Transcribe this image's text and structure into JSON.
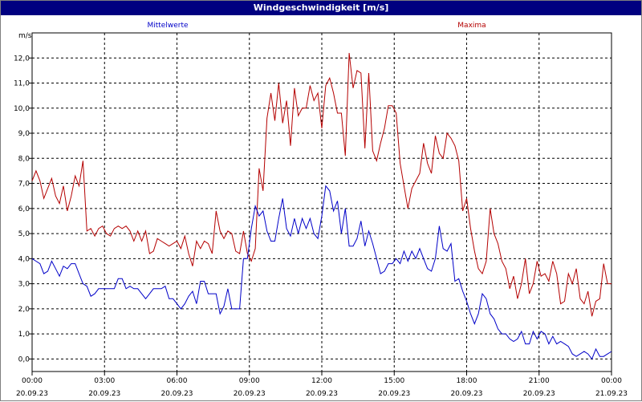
{
  "chart_data": {
    "type": "line",
    "title": "Windgeschwindigkeit [m/s]",
    "ylabel": "m/s",
    "ylim": [
      -0.5,
      13.0
    ],
    "y_ticks": [
      "0,0",
      "1,0",
      "2,0",
      "3,0",
      "4,0",
      "5,0",
      "6,0",
      "7,0",
      "8,0",
      "9,0",
      "10,0",
      "11,0",
      "12,0"
    ],
    "x_ticks": [
      {
        "time": "00:00",
        "date": "20.09.23"
      },
      {
        "time": "03:00",
        "date": "20.09.23"
      },
      {
        "time": "06:00",
        "date": "20.09.23"
      },
      {
        "time": "09:00",
        "date": "20.09.23"
      },
      {
        "time": "12:00",
        "date": "20.09.23"
      },
      {
        "time": "15:00",
        "date": "20.09.23"
      },
      {
        "time": "18:00",
        "date": "20.09.23"
      },
      {
        "time": "21:00",
        "date": "20.09.23"
      },
      {
        "time": "00:00",
        "date": "21.09.23"
      }
    ],
    "grid": true,
    "series": [
      {
        "name": "Mittelwerte",
        "color": "#0000c8",
        "points": [
          [
            0.0,
            4.0
          ],
          [
            0.25,
            3.9
          ],
          [
            0.5,
            3.8
          ],
          [
            0.75,
            3.4
          ],
          [
            1.0,
            3.5
          ],
          [
            1.25,
            3.9
          ],
          [
            1.5,
            3.6
          ],
          [
            1.75,
            3.3
          ],
          [
            2.0,
            3.7
          ],
          [
            2.25,
            3.6
          ],
          [
            2.5,
            3.8
          ],
          [
            2.75,
            3.8
          ],
          [
            3.0,
            3.4
          ],
          [
            3.25,
            3.0
          ],
          [
            3.5,
            2.9
          ],
          [
            3.75,
            2.5
          ],
          [
            4.0,
            2.6
          ],
          [
            4.25,
            2.8
          ],
          [
            4.5,
            2.8
          ],
          [
            4.75,
            2.8
          ],
          [
            5.0,
            2.8
          ],
          [
            5.25,
            2.8
          ],
          [
            5.5,
            3.2
          ],
          [
            5.75,
            3.2
          ],
          [
            6.0,
            2.8
          ],
          [
            6.25,
            2.9
          ],
          [
            6.5,
            2.8
          ],
          [
            6.75,
            2.8
          ],
          [
            7.0,
            2.6
          ],
          [
            7.25,
            2.4
          ],
          [
            7.5,
            2.6
          ],
          [
            7.75,
            2.8
          ],
          [
            8.0,
            2.8
          ],
          [
            8.25,
            2.8
          ],
          [
            8.5,
            2.9
          ],
          [
            8.75,
            2.4
          ],
          [
            9.0,
            2.4
          ],
          [
            9.25,
            2.2
          ],
          [
            9.5,
            2.0
          ],
          [
            9.75,
            2.2
          ],
          [
            10.0,
            2.5
          ],
          [
            10.25,
            2.7
          ],
          [
            10.5,
            2.2
          ],
          [
            10.75,
            3.1
          ],
          [
            11.0,
            3.1
          ],
          [
            11.25,
            2.6
          ],
          [
            11.5,
            2.6
          ],
          [
            11.75,
            2.6
          ],
          [
            12.0,
            1.8
          ],
          [
            12.25,
            2.1
          ],
          [
            12.5,
            2.8
          ],
          [
            12.75,
            2.0
          ],
          [
            13.0,
            2.0
          ],
          [
            13.25,
            2.0
          ],
          [
            13.5,
            4.0
          ],
          [
            13.75,
            4.0
          ],
          [
            14.0,
            5.2
          ],
          [
            14.25,
            6.1
          ],
          [
            14.5,
            5.7
          ],
          [
            14.75,
            5.9
          ],
          [
            15.0,
            5.1
          ],
          [
            15.25,
            4.7
          ],
          [
            15.5,
            4.7
          ],
          [
            15.75,
            5.6
          ],
          [
            16.0,
            6.4
          ],
          [
            16.25,
            5.2
          ],
          [
            16.5,
            4.9
          ],
          [
            16.75,
            5.6
          ],
          [
            17.0,
            5.0
          ],
          [
            17.25,
            5.6
          ],
          [
            17.5,
            5.2
          ],
          [
            17.75,
            5.6
          ],
          [
            18.0,
            5.0
          ],
          [
            18.25,
            4.8
          ],
          [
            18.5,
            5.7
          ],
          [
            18.75,
            6.9
          ],
          [
            19.0,
            6.7
          ],
          [
            19.25,
            5.9
          ],
          [
            19.5,
            6.3
          ],
          [
            19.75,
            5.0
          ],
          [
            20.0,
            6.0
          ],
          [
            20.25,
            4.5
          ],
          [
            20.5,
            4.5
          ],
          [
            20.75,
            4.8
          ],
          [
            21.0,
            5.5
          ],
          [
            21.25,
            4.5
          ],
          [
            21.5,
            5.1
          ],
          [
            21.75,
            4.6
          ],
          [
            22.0,
            4.0
          ],
          [
            22.25,
            3.4
          ],
          [
            22.5,
            3.5
          ],
          [
            22.75,
            3.8
          ],
          [
            23.0,
            3.8
          ],
          [
            23.25,
            4.0
          ],
          [
            23.5,
            3.8
          ],
          [
            23.75,
            4.3
          ],
          [
            24.0,
            3.9
          ],
          [
            24.25,
            4.3
          ],
          [
            24.5,
            4.0
          ],
          [
            24.75,
            4.4
          ],
          [
            25.0,
            4.0
          ],
          [
            25.25,
            3.6
          ],
          [
            25.5,
            3.5
          ],
          [
            25.75,
            4.0
          ],
          [
            26.0,
            5.3
          ],
          [
            26.25,
            4.4
          ],
          [
            26.5,
            4.3
          ],
          [
            26.75,
            4.6
          ],
          [
            27.0,
            3.1
          ],
          [
            27.25,
            3.2
          ],
          [
            27.5,
            2.7
          ],
          [
            27.75,
            2.3
          ],
          [
            28.0,
            1.8
          ],
          [
            28.25,
            1.4
          ],
          [
            28.5,
            1.8
          ],
          [
            28.75,
            2.6
          ],
          [
            29.0,
            2.4
          ],
          [
            29.25,
            1.8
          ],
          [
            29.5,
            1.6
          ],
          [
            29.75,
            1.2
          ],
          [
            30.0,
            1.0
          ],
          [
            30.25,
            1.0
          ],
          [
            30.5,
            0.8
          ],
          [
            30.75,
            0.7
          ],
          [
            31.0,
            0.8
          ],
          [
            31.25,
            1.1
          ],
          [
            31.5,
            0.6
          ],
          [
            31.75,
            0.6
          ],
          [
            32.0,
            1.1
          ],
          [
            32.25,
            0.8
          ],
          [
            32.5,
            1.1
          ],
          [
            32.75,
            1.0
          ],
          [
            33.0,
            0.6
          ],
          [
            33.25,
            0.9
          ],
          [
            33.5,
            0.6
          ],
          [
            33.75,
            0.7
          ],
          [
            34.0,
            0.6
          ],
          [
            34.25,
            0.5
          ],
          [
            34.5,
            0.2
          ],
          [
            34.75,
            0.1
          ],
          [
            35.0,
            0.2
          ],
          [
            35.25,
            0.3
          ],
          [
            35.5,
            0.2
          ],
          [
            35.75,
            0.0
          ],
          [
            36.0,
            0.4
          ],
          [
            36.25,
            0.1
          ],
          [
            36.5,
            0.1
          ],
          [
            36.75,
            0.2
          ],
          [
            37.0,
            0.3
          ]
        ]
      },
      {
        "name": "Maxima",
        "color": "#b40000",
        "points": [
          [
            0.0,
            7.1
          ],
          [
            0.25,
            7.5
          ],
          [
            0.5,
            7.1
          ],
          [
            0.75,
            6.4
          ],
          [
            1.0,
            6.8
          ],
          [
            1.25,
            7.2
          ],
          [
            1.5,
            6.5
          ],
          [
            1.75,
            6.2
          ],
          [
            2.0,
            6.9
          ],
          [
            2.25,
            5.9
          ],
          [
            2.5,
            6.5
          ],
          [
            2.75,
            7.3
          ],
          [
            3.0,
            6.9
          ],
          [
            3.25,
            7.9
          ],
          [
            3.5,
            5.1
          ],
          [
            3.75,
            5.2
          ],
          [
            4.0,
            4.9
          ],
          [
            4.25,
            5.2
          ],
          [
            4.5,
            5.3
          ],
          [
            4.75,
            5.0
          ],
          [
            5.0,
            4.9
          ],
          [
            5.25,
            5.2
          ],
          [
            5.5,
            5.3
          ],
          [
            5.75,
            5.2
          ],
          [
            6.0,
            5.3
          ],
          [
            6.25,
            5.1
          ],
          [
            6.5,
            4.7
          ],
          [
            6.75,
            5.1
          ],
          [
            7.0,
            4.7
          ],
          [
            7.25,
            5.1
          ],
          [
            7.5,
            4.2
          ],
          [
            7.75,
            4.3
          ],
          [
            8.0,
            4.8
          ],
          [
            8.25,
            4.7
          ],
          [
            8.5,
            4.6
          ],
          [
            8.75,
            4.5
          ],
          [
            9.0,
            4.6
          ],
          [
            9.25,
            4.7
          ],
          [
            9.5,
            4.4
          ],
          [
            9.75,
            4.9
          ],
          [
            10.0,
            4.2
          ],
          [
            10.25,
            3.7
          ],
          [
            10.5,
            4.7
          ],
          [
            10.75,
            4.4
          ],
          [
            11.0,
            4.7
          ],
          [
            11.25,
            4.6
          ],
          [
            11.5,
            4.2
          ],
          [
            11.75,
            5.9
          ],
          [
            12.0,
            5.1
          ],
          [
            12.25,
            4.8
          ],
          [
            12.5,
            5.1
          ],
          [
            12.75,
            5.0
          ],
          [
            13.0,
            4.3
          ],
          [
            13.25,
            4.2
          ],
          [
            13.5,
            5.1
          ],
          [
            13.75,
            4.2
          ],
          [
            14.0,
            3.9
          ],
          [
            14.25,
            4.4
          ],
          [
            14.5,
            7.6
          ],
          [
            14.75,
            6.7
          ],
          [
            15.0,
            9.6
          ],
          [
            15.25,
            10.6
          ],
          [
            15.5,
            9.5
          ],
          [
            15.75,
            11.0
          ],
          [
            16.0,
            9.4
          ],
          [
            16.25,
            10.3
          ],
          [
            16.5,
            8.5
          ],
          [
            16.75,
            10.8
          ],
          [
            17.0,
            9.7
          ],
          [
            17.25,
            10.0
          ],
          [
            17.5,
            10.0
          ],
          [
            17.75,
            10.9
          ],
          [
            18.0,
            10.3
          ],
          [
            18.25,
            10.6
          ],
          [
            18.5,
            9.2
          ],
          [
            18.75,
            10.9
          ],
          [
            19.0,
            11.2
          ],
          [
            19.25,
            10.6
          ],
          [
            19.5,
            9.8
          ],
          [
            19.75,
            9.8
          ],
          [
            20.0,
            8.1
          ],
          [
            20.25,
            12.2
          ],
          [
            20.5,
            10.8
          ],
          [
            20.75,
            11.5
          ],
          [
            21.0,
            11.4
          ],
          [
            21.25,
            8.4
          ],
          [
            21.5,
            11.4
          ],
          [
            21.75,
            8.3
          ],
          [
            22.0,
            7.9
          ],
          [
            22.25,
            8.6
          ],
          [
            22.5,
            9.2
          ],
          [
            22.75,
            10.1
          ],
          [
            23.0,
            10.1
          ],
          [
            23.25,
            9.8
          ],
          [
            23.5,
            7.8
          ],
          [
            23.75,
            6.9
          ],
          [
            24.0,
            6.0
          ],
          [
            24.25,
            6.8
          ],
          [
            24.5,
            7.1
          ],
          [
            24.75,
            7.4
          ],
          [
            25.0,
            8.6
          ],
          [
            25.25,
            7.8
          ],
          [
            25.5,
            7.4
          ],
          [
            25.75,
            8.9
          ],
          [
            26.0,
            8.2
          ],
          [
            26.25,
            8.0
          ],
          [
            26.5,
            9.0
          ],
          [
            26.75,
            8.8
          ],
          [
            27.0,
            8.5
          ],
          [
            27.25,
            7.9
          ],
          [
            27.5,
            5.9
          ],
          [
            27.75,
            6.4
          ],
          [
            28.0,
            5.2
          ],
          [
            28.25,
            4.3
          ],
          [
            28.5,
            3.6
          ],
          [
            28.75,
            3.4
          ],
          [
            29.0,
            3.9
          ],
          [
            29.25,
            6.0
          ],
          [
            29.5,
            5.0
          ],
          [
            29.75,
            4.6
          ],
          [
            30.0,
            3.9
          ],
          [
            30.25,
            3.6
          ],
          [
            30.5,
            2.8
          ],
          [
            30.75,
            3.3
          ],
          [
            31.0,
            2.4
          ],
          [
            31.25,
            3.0
          ],
          [
            31.5,
            4.0
          ],
          [
            31.75,
            2.6
          ],
          [
            32.0,
            3.0
          ],
          [
            32.25,
            3.9
          ],
          [
            32.5,
            3.3
          ],
          [
            32.75,
            3.4
          ],
          [
            33.0,
            3.1
          ],
          [
            33.25,
            3.9
          ],
          [
            33.5,
            3.4
          ],
          [
            33.75,
            2.2
          ],
          [
            34.0,
            2.3
          ],
          [
            34.25,
            3.4
          ],
          [
            34.5,
            3.0
          ],
          [
            34.75,
            3.6
          ],
          [
            35.0,
            2.4
          ],
          [
            35.25,
            2.2
          ],
          [
            35.5,
            2.7
          ],
          [
            35.75,
            1.7
          ],
          [
            36.0,
            2.3
          ],
          [
            36.25,
            2.4
          ],
          [
            36.5,
            3.8
          ],
          [
            36.75,
            3.0
          ],
          [
            37.0,
            3.0
          ]
        ]
      }
    ]
  }
}
